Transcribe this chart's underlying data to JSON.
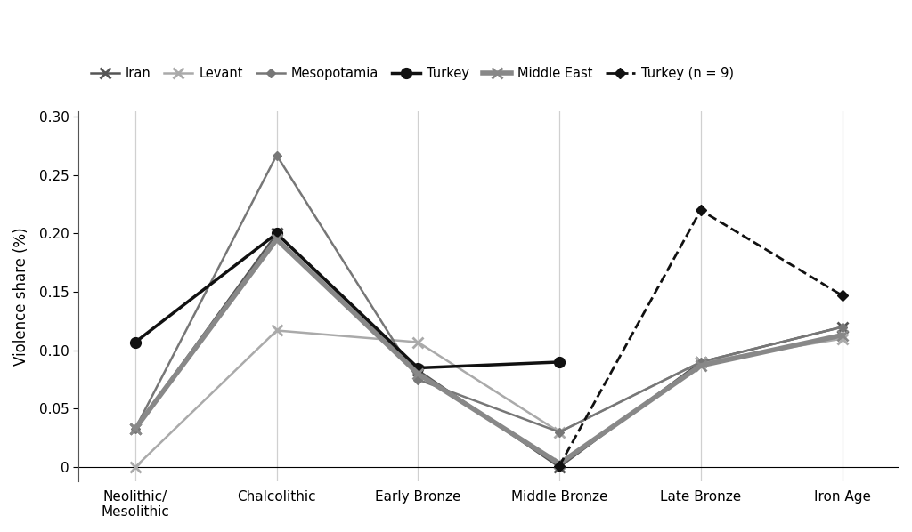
{
  "categories": [
    "Neolithic/\nMesolithic",
    "Chalcolithic",
    "Early Bronze",
    "Middle Bronze",
    "Late Bronze",
    "Iron Age"
  ],
  "series": [
    {
      "name": "Iran",
      "color": "#555555",
      "linewidth": 1.8,
      "linestyle": "-",
      "marker": "x",
      "markersize": 8,
      "markeredgewidth": 2.0,
      "values": [
        0.033,
        0.2,
        0.083,
        0.0,
        0.09,
        0.12
      ]
    },
    {
      "name": "Levant",
      "color": "#aaaaaa",
      "linewidth": 1.8,
      "linestyle": "-",
      "marker": "x",
      "markersize": 8,
      "markeredgewidth": 2.0,
      "values": [
        0.0,
        0.117,
        0.107,
        0.03,
        0.09,
        0.11
      ]
    },
    {
      "name": "Mesopotamia",
      "color": "#777777",
      "linewidth": 1.8,
      "linestyle": "-",
      "marker": "D",
      "markersize": 5,
      "markeredgewidth": 1.0,
      "values": [
        0.033,
        0.267,
        0.075,
        0.03,
        0.09,
        0.12
      ]
    },
    {
      "name": "Turkey",
      "color": "#111111",
      "linewidth": 2.5,
      "linestyle": "-",
      "marker": "o",
      "markersize": 8,
      "markeredgewidth": 1.5,
      "values": [
        0.107,
        0.2,
        0.085,
        0.09,
        null,
        null
      ]
    },
    {
      "name": "Middle East",
      "color": "#888888",
      "linewidth": 4.0,
      "linestyle": "-",
      "marker": "x",
      "markersize": 8,
      "markeredgewidth": 2.0,
      "values": [
        0.033,
        0.195,
        0.08,
        0.003,
        0.087,
        0.113
      ]
    },
    {
      "name": "Turkey (n = 9)",
      "color": "#111111",
      "linewidth": 2.0,
      "linestyle": "--",
      "marker": "D",
      "markersize": 6,
      "markeredgewidth": 1.0,
      "values": [
        null,
        null,
        null,
        0.001,
        0.22,
        0.147
      ]
    }
  ],
  "ylabel": "Violence share (%)",
  "ylim": [
    -0.012,
    0.305
  ],
  "yticks": [
    0,
    0.05,
    0.1,
    0.15,
    0.2,
    0.25,
    0.3
  ],
  "ytick_labels": [
    "0",
    "0.05",
    "0.10",
    "0.15",
    "0.20",
    "0.25",
    "0.30"
  ],
  "background_color": "#ffffff",
  "grid_color": "#d0d0d0",
  "figwidth": 10.24,
  "figheight": 5.98,
  "dpi": 100
}
